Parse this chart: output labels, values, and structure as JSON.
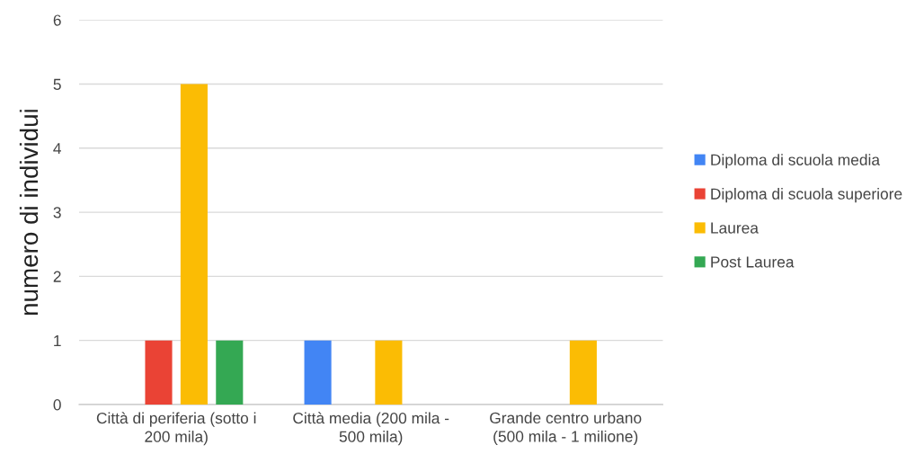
{
  "chart_data": {
    "type": "bar",
    "ylabel": "numero di individui",
    "categories": [
      "Città di periferia (sotto i\n200 mila)",
      "Città media (200 mila -\n500 mila)",
      "Grande centro urbano\n(500 mila - 1 milione)"
    ],
    "series": [
      {
        "name": "Diploma di scuola media",
        "color": "#4285f4",
        "values": [
          null,
          1,
          null
        ]
      },
      {
        "name": "Diploma di scuola superiore",
        "color": "#ea4335",
        "values": [
          1,
          null,
          null
        ]
      },
      {
        "name": "Laurea",
        "color": "#fbbc04",
        "values": [
          5,
          1,
          1
        ]
      },
      {
        "name": "Post Laurea",
        "color": "#34a853",
        "values": [
          1,
          null,
          null
        ]
      }
    ],
    "ylim": [
      0,
      6
    ],
    "yticks": [
      0,
      1,
      2,
      3,
      4,
      5,
      6
    ],
    "grid": "y",
    "legend": "right"
  }
}
